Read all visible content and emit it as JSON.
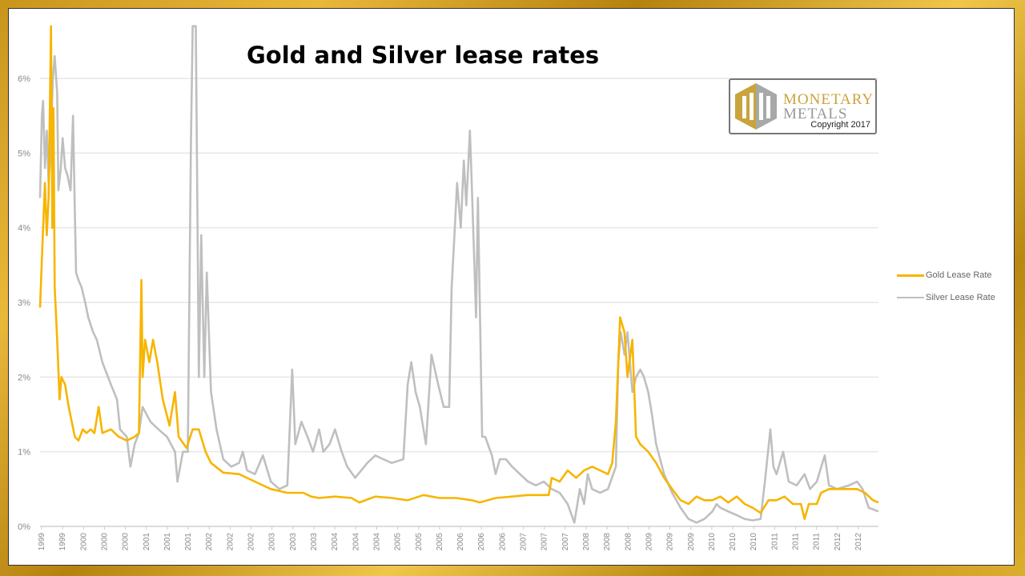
{
  "chart_data": {
    "type": "line",
    "title": "Gold and Silver lease rates",
    "xlabel": "",
    "ylabel": "",
    "xlim": [
      1999.0,
      2012.73
    ],
    "ylim": [
      0,
      6
    ],
    "grid": true,
    "legend_position": "right",
    "y_ticks": [
      "0%",
      "1%",
      "2%",
      "3%",
      "4%",
      "5%",
      "6%"
    ],
    "x_tick_labels": [
      "1999",
      "1999",
      "2000",
      "2000",
      "2000",
      "2001",
      "2001",
      "2001",
      "2002",
      "2002",
      "2002",
      "2003",
      "2003",
      "2003",
      "2004",
      "2004",
      "2004",
      "2005",
      "2005",
      "2005",
      "2006",
      "2006",
      "2006",
      "2007",
      "2007",
      "2007",
      "2008",
      "2008",
      "2008",
      "2009",
      "2009",
      "2009",
      "2010",
      "2010",
      "2010",
      "2011",
      "2011",
      "2011",
      "2012",
      "2012"
    ],
    "series": [
      {
        "name": "Gold Lease Rate",
        "color": "#F7B500",
        "x": [
          1999.0,
          1999.04,
          1999.08,
          1999.11,
          1999.14,
          1999.18,
          1999.2,
          1999.22,
          1999.24,
          1999.28,
          1999.32,
          1999.35,
          1999.41,
          1999.47,
          1999.57,
          1999.63,
          1999.7,
          1999.76,
          1999.83,
          1999.89,
          1999.96,
          2000.02,
          2000.16,
          2000.29,
          2000.42,
          2000.55,
          2000.62,
          2000.66,
          2000.68,
          2000.72,
          2000.79,
          2000.85,
          2000.92,
          2001.01,
          2001.12,
          2001.21,
          2001.27,
          2001.4,
          2001.5,
          2001.6,
          2001.71,
          2001.8,
          2002.0,
          2002.26,
          2002.52,
          2002.78,
          2003.05,
          2003.31,
          2003.44,
          2003.57,
          2003.83,
          2004.1,
          2004.23,
          2004.49,
          2004.76,
          2005.02,
          2005.28,
          2005.54,
          2005.81,
          2006.07,
          2006.2,
          2006.46,
          2006.73,
          2006.99,
          2007.33,
          2007.38,
          2007.51,
          2007.64,
          2007.78,
          2007.91,
          2008.04,
          2008.17,
          2008.3,
          2008.37,
          2008.43,
          2008.5,
          2008.57,
          2008.62,
          2008.7,
          2008.76,
          2008.83,
          2008.96,
          2009.09,
          2009.22,
          2009.35,
          2009.49,
          2009.62,
          2009.75,
          2009.88,
          2010.01,
          2010.14,
          2010.27,
          2010.41,
          2010.54,
          2010.67,
          2010.8,
          2010.93,
          2011.06,
          2011.19,
          2011.33,
          2011.46,
          2011.52,
          2011.59,
          2011.72,
          2011.79,
          2011.92,
          2012.11,
          2012.25,
          2012.38,
          2012.51,
          2012.64,
          2012.73
        ],
        "y": [
          2.93,
          3.8,
          4.6,
          3.9,
          4.4,
          6.7,
          4.0,
          5.6,
          3.2,
          2.5,
          1.7,
          2.0,
          1.9,
          1.6,
          1.2,
          1.15,
          1.3,
          1.25,
          1.3,
          1.25,
          1.6,
          1.25,
          1.3,
          1.2,
          1.15,
          1.2,
          1.25,
          3.3,
          2.0,
          2.5,
          2.2,
          2.5,
          2.2,
          1.7,
          1.35,
          1.8,
          1.2,
          1.05,
          1.3,
          1.3,
          1.0,
          0.85,
          0.72,
          0.7,
          0.6,
          0.5,
          0.45,
          0.45,
          0.4,
          0.38,
          0.4,
          0.38,
          0.32,
          0.4,
          0.38,
          0.35,
          0.42,
          0.38,
          0.38,
          0.35,
          0.32,
          0.38,
          0.4,
          0.42,
          0.42,
          0.65,
          0.6,
          0.75,
          0.65,
          0.75,
          0.8,
          0.75,
          0.7,
          0.85,
          1.4,
          2.8,
          2.6,
          2.0,
          2.5,
          1.2,
          1.1,
          1.0,
          0.85,
          0.65,
          0.5,
          0.35,
          0.3,
          0.4,
          0.35,
          0.35,
          0.4,
          0.32,
          0.4,
          0.3,
          0.25,
          0.18,
          0.35,
          0.35,
          0.4,
          0.3,
          0.3,
          0.1,
          0.3,
          0.3,
          0.45,
          0.5,
          0.5,
          0.5,
          0.5,
          0.45,
          0.35,
          0.32
        ]
      },
      {
        "name": "Silver Lease Rate",
        "color": "#BFBFBF",
        "x": [
          1999.0,
          1999.03,
          1999.05,
          1999.08,
          1999.11,
          1999.14,
          1999.17,
          1999.21,
          1999.24,
          1999.28,
          1999.3,
          1999.34,
          1999.37,
          1999.41,
          1999.45,
          1999.5,
          1999.54,
          1999.57,
          1999.59,
          1999.63,
          1999.68,
          1999.74,
          1999.79,
          1999.87,
          1999.93,
          2000.02,
          2000.16,
          2000.26,
          2000.31,
          2000.42,
          2000.48,
          2000.55,
          2000.62,
          2000.68,
          2000.81,
          2000.94,
          2001.08,
          2001.21,
          2001.25,
          2001.34,
          2001.42,
          2001.47,
          2001.5,
          2001.55,
          2001.58,
          2001.6,
          2001.64,
          2001.69,
          2001.73,
          2001.8,
          2001.89,
          2002.0,
          2002.13,
          2002.26,
          2002.32,
          2002.39,
          2002.52,
          2002.65,
          2002.78,
          2002.92,
          2003.05,
          2003.13,
          2003.18,
          2003.28,
          2003.38,
          2003.47,
          2003.57,
          2003.64,
          2003.74,
          2003.83,
          2003.94,
          2004.03,
          2004.16,
          2004.36,
          2004.49,
          2004.62,
          2004.76,
          2004.95,
          2005.02,
          2005.08,
          2005.15,
          2005.22,
          2005.32,
          2005.41,
          2005.52,
          2005.61,
          2005.7,
          2005.74,
          2005.78,
          2005.83,
          2005.89,
          2005.94,
          2005.98,
          2006.04,
          2006.07,
          2006.14,
          2006.17,
          2006.24,
          2006.29,
          2006.4,
          2006.46,
          2006.53,
          2006.63,
          2006.73,
          2006.86,
          2006.99,
          2007.12,
          2007.25,
          2007.38,
          2007.51,
          2007.64,
          2007.75,
          2007.84,
          2007.91,
          2007.97,
          2008.04,
          2008.17,
          2008.3,
          2008.43,
          2008.47,
          2008.51,
          2008.57,
          2008.62,
          2008.7,
          2008.76,
          2008.83,
          2008.89,
          2008.96,
          2009.02,
          2009.09,
          2009.22,
          2009.35,
          2009.49,
          2009.62,
          2009.75,
          2009.88,
          2010.01,
          2010.08,
          2010.14,
          2010.27,
          2010.41,
          2010.54,
          2010.67,
          2010.8,
          2010.87,
          2010.96,
          2011.01,
          2011.06,
          2011.17,
          2011.26,
          2011.39,
          2011.52,
          2011.61,
          2011.72,
          2011.85,
          2011.92,
          2012.05,
          2012.25,
          2012.38,
          2012.47,
          2012.57,
          2012.73
        ],
        "y": [
          4.4,
          5.5,
          5.7,
          4.8,
          5.3,
          4.6,
          5.0,
          6.0,
          6.3,
          5.8,
          4.5,
          4.8,
          5.2,
          4.8,
          4.7,
          4.5,
          5.5,
          4.2,
          3.4,
          3.3,
          3.2,
          3.0,
          2.8,
          2.6,
          2.5,
          2.2,
          1.9,
          1.7,
          1.3,
          1.2,
          0.8,
          1.1,
          1.25,
          1.6,
          1.4,
          1.3,
          1.2,
          1.0,
          0.6,
          1.0,
          1.0,
          5.1,
          6.7,
          6.7,
          4.0,
          2.0,
          3.9,
          2.0,
          3.4,
          1.8,
          1.3,
          0.9,
          0.8,
          0.85,
          1.0,
          0.75,
          0.7,
          0.95,
          0.6,
          0.5,
          0.55,
          2.1,
          1.1,
          1.4,
          1.2,
          1.0,
          1.3,
          1.0,
          1.1,
          1.3,
          1.0,
          0.8,
          0.65,
          0.85,
          0.95,
          0.9,
          0.85,
          0.9,
          1.9,
          2.2,
          1.8,
          1.6,
          1.1,
          2.3,
          1.9,
          1.6,
          1.6,
          3.2,
          3.8,
          4.6,
          4.0,
          4.9,
          4.3,
          5.3,
          4.6,
          2.8,
          4.4,
          1.2,
          1.2,
          0.95,
          0.7,
          0.9,
          0.9,
          0.8,
          0.7,
          0.6,
          0.55,
          0.6,
          0.5,
          0.45,
          0.3,
          0.05,
          0.5,
          0.3,
          0.7,
          0.5,
          0.45,
          0.5,
          0.8,
          2.2,
          2.6,
          2.3,
          2.6,
          1.8,
          2.0,
          2.1,
          2.0,
          1.8,
          1.5,
          1.1,
          0.7,
          0.45,
          0.25,
          0.1,
          0.05,
          0.1,
          0.2,
          0.3,
          0.25,
          0.2,
          0.15,
          0.1,
          0.08,
          0.1,
          0.6,
          1.3,
          0.8,
          0.7,
          1.0,
          0.6,
          0.55,
          0.7,
          0.5,
          0.6,
          0.95,
          0.55,
          0.5,
          0.55,
          0.6,
          0.5,
          0.25,
          0.2
        ]
      }
    ]
  },
  "logo": {
    "line1": "MONETARY",
    "line2": "METALS",
    "copyright": "Copyright 2017"
  }
}
